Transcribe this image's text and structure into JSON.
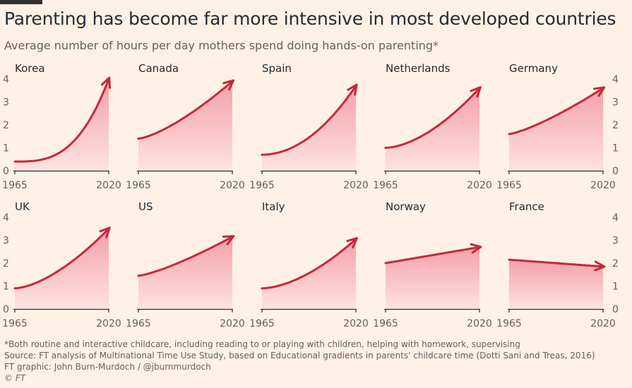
{
  "header": {
    "title": "Parenting has become far more intensive in most developed countries",
    "subtitle": "Average number of hours per day mothers spend doing hands-on parenting*"
  },
  "footer": {
    "note": "*Both routine and interactive childcare, including reading to or playing with children, helping with homework, supervising",
    "source": "Source: FT analysis of Multinational Time Use Study, based on Educational gradients in parents' childcare time (Dotti Sani and Treas, 2016)",
    "credit": "FT graphic: John Burn-Murdoch / @jburnmurdoch",
    "copyright": "© FT"
  },
  "colors": {
    "line": "#c6283c",
    "fill_top": "#f4a0a8",
    "fill_bottom": "#fde3df",
    "baseline": "#33302e",
    "tick_text": "#66605c"
  },
  "chart_data": {
    "type": "area",
    "title": "Parenting has become far more intensive in most developed countries",
    "ylabel": "Average number of hours per day",
    "ylim": [
      0,
      4
    ],
    "yticks": [
      "0",
      "1",
      "2",
      "3",
      "4"
    ],
    "xlim": [
      1965,
      2020
    ],
    "xticks": [
      "1965",
      "2020"
    ],
    "panels": [
      {
        "country": "Korea",
        "start": 0.4,
        "end": 4.0,
        "curve": 3.0
      },
      {
        "country": "Canada",
        "start": 1.4,
        "end": 3.9,
        "curve": 1.4
      },
      {
        "country": "Spain",
        "start": 0.7,
        "end": 3.7,
        "curve": 2.0
      },
      {
        "country": "Netherlands",
        "start": 1.0,
        "end": 3.6,
        "curve": 1.7
      },
      {
        "country": "Germany",
        "start": 1.6,
        "end": 3.6,
        "curve": 1.3
      },
      {
        "country": "UK",
        "start": 0.9,
        "end": 3.5,
        "curve": 1.6
      },
      {
        "country": "US",
        "start": 1.45,
        "end": 3.15,
        "curve": 1.3
      },
      {
        "country": "Italy",
        "start": 0.9,
        "end": 3.05,
        "curve": 1.7
      },
      {
        "country": "Norway",
        "start": 2.0,
        "end": 2.7,
        "curve": 1.0
      },
      {
        "country": "France",
        "start": 2.15,
        "end": 1.85,
        "curve": 1.0
      }
    ]
  }
}
